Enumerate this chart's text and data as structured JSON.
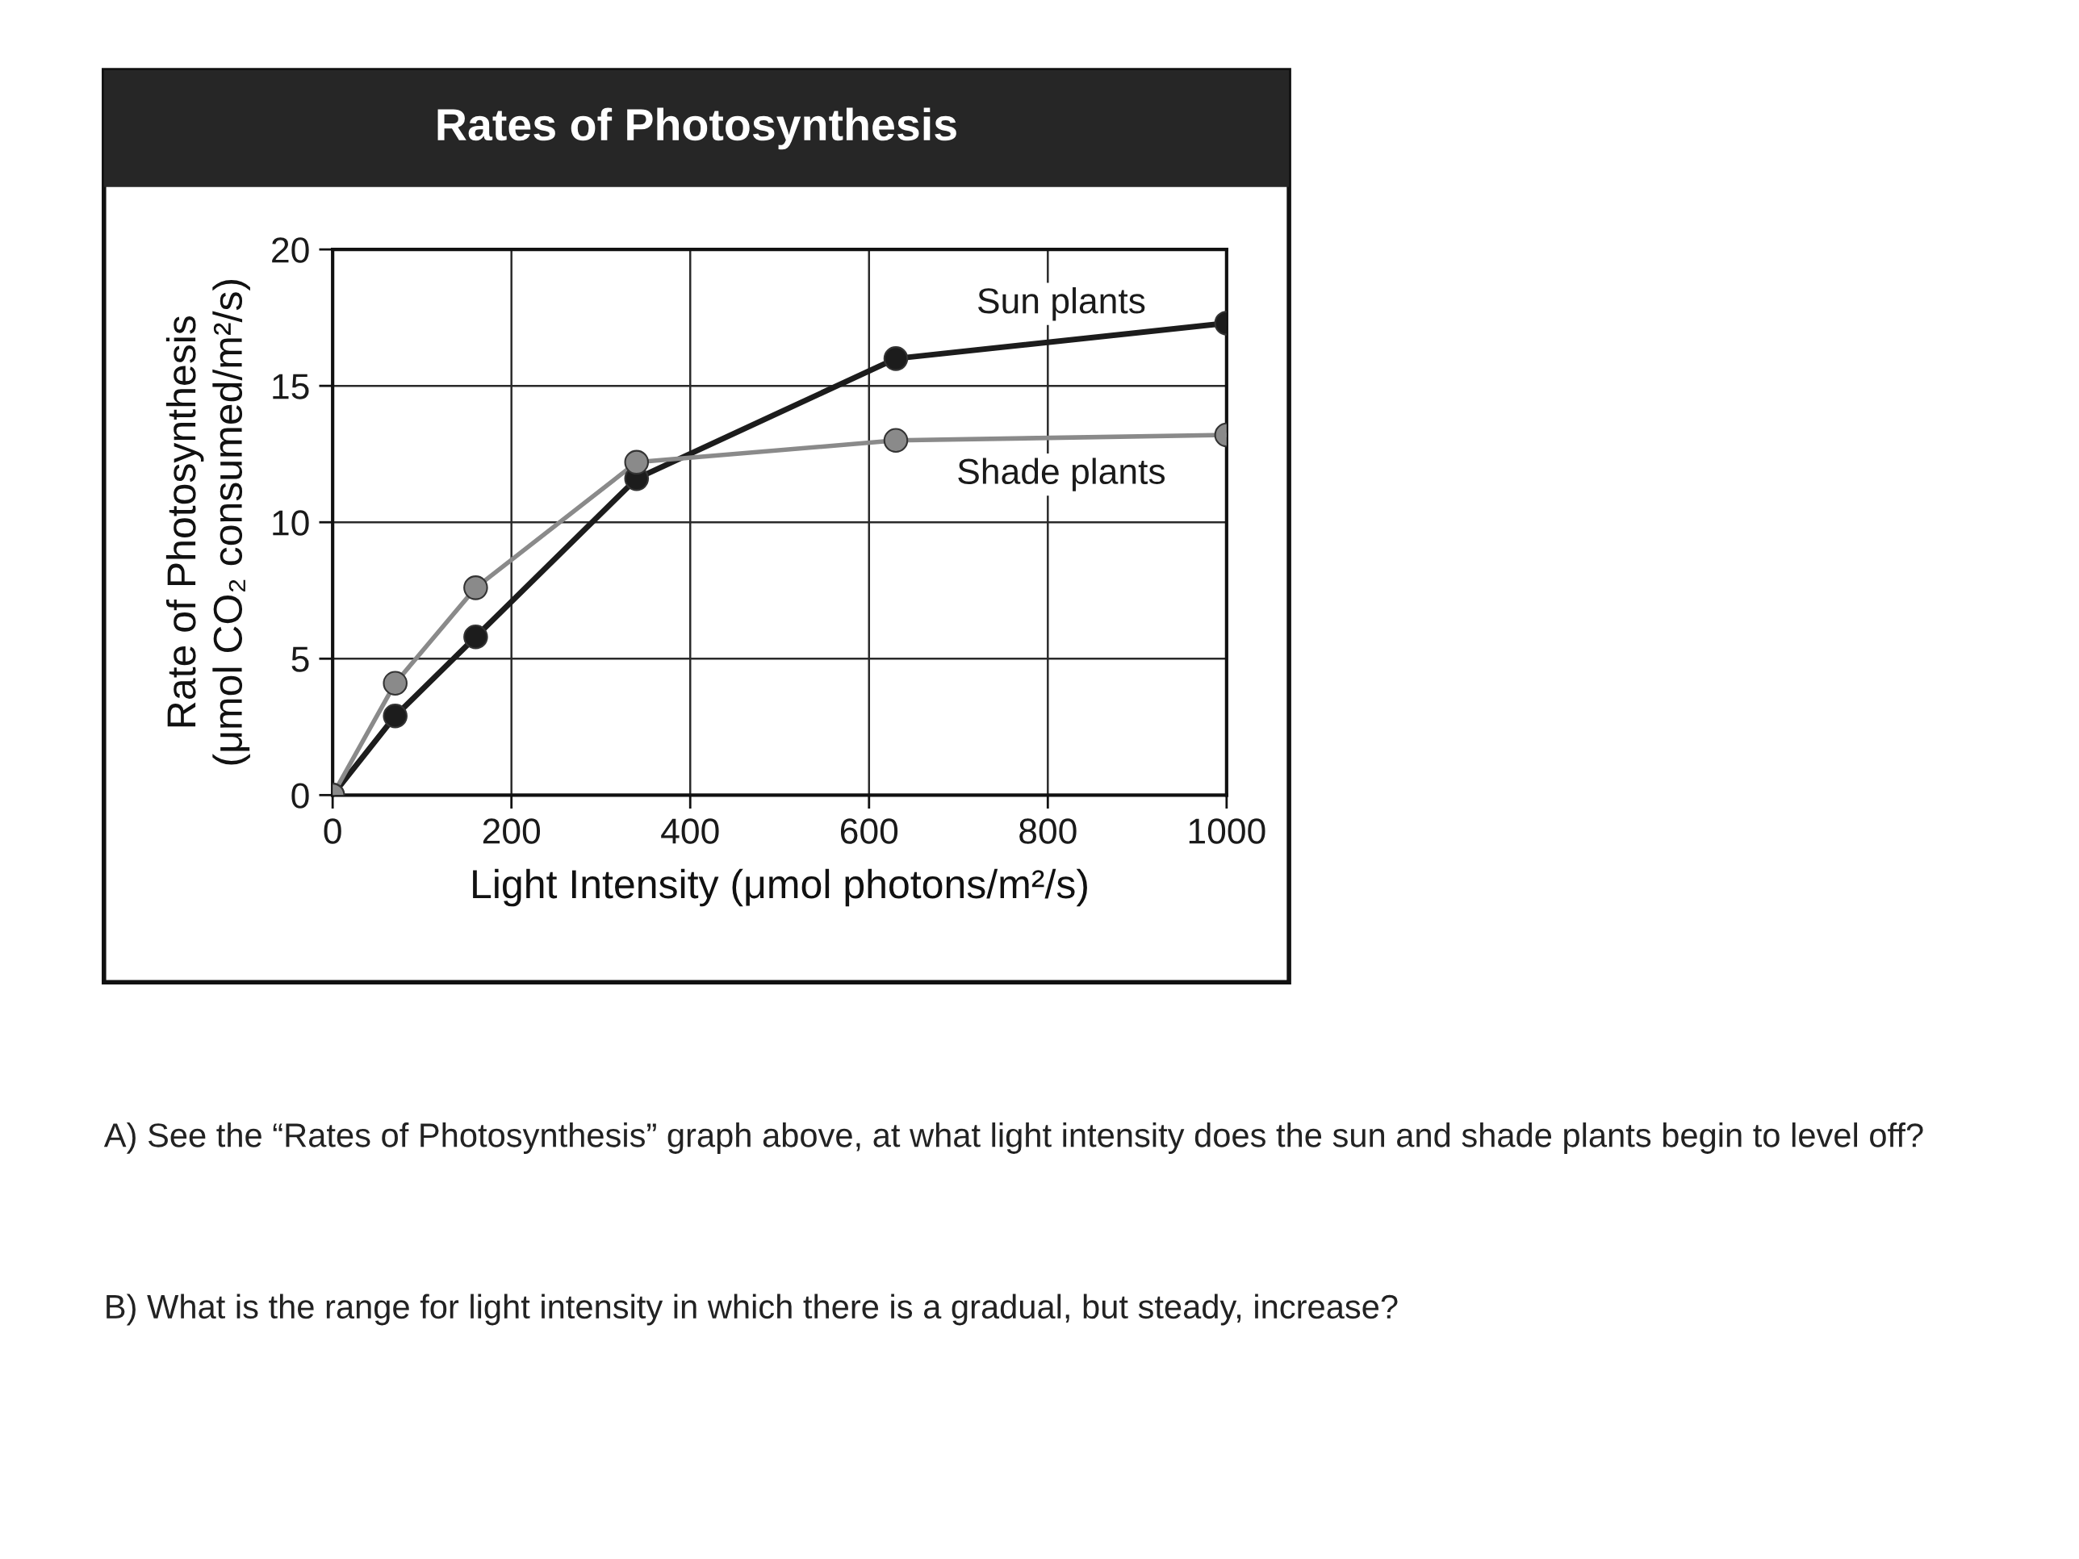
{
  "chart_data": {
    "type": "line",
    "title": "Rates of Photosynthesis",
    "xlabel": "Light Intensity (μmol photons/m²/s)",
    "ylabel": "Rate of Photosynthesis\n(μmol CO₂ consumed/m²/s)",
    "x": [
      0,
      70,
      160,
      340,
      630,
      1000
    ],
    "series": [
      {
        "name": "Sun plants",
        "color": "#1c1c1c",
        "values": [
          0,
          2.9,
          5.8,
          11.6,
          16,
          17.3
        ]
      },
      {
        "name": "Shade plants",
        "color": "#8a8a8a",
        "values": [
          0,
          4.1,
          7.6,
          12.2,
          13,
          13.2
        ]
      }
    ],
    "xlim": [
      0,
      1000
    ],
    "ylim": [
      0,
      20
    ],
    "xticks": [
      0,
      200,
      400,
      600,
      800,
      1000
    ],
    "yticks": [
      0,
      5,
      10,
      15,
      20
    ],
    "grid": true,
    "marker": "circle",
    "line_style": "solid",
    "annotations": [
      "A) See the “Rates of Photosynthesis” graph above, at what light intensity does the sun and shade plants begin to level off?",
      "B) What is the range for light intensity in which there is a gradual, but steady, increase?"
    ]
  }
}
